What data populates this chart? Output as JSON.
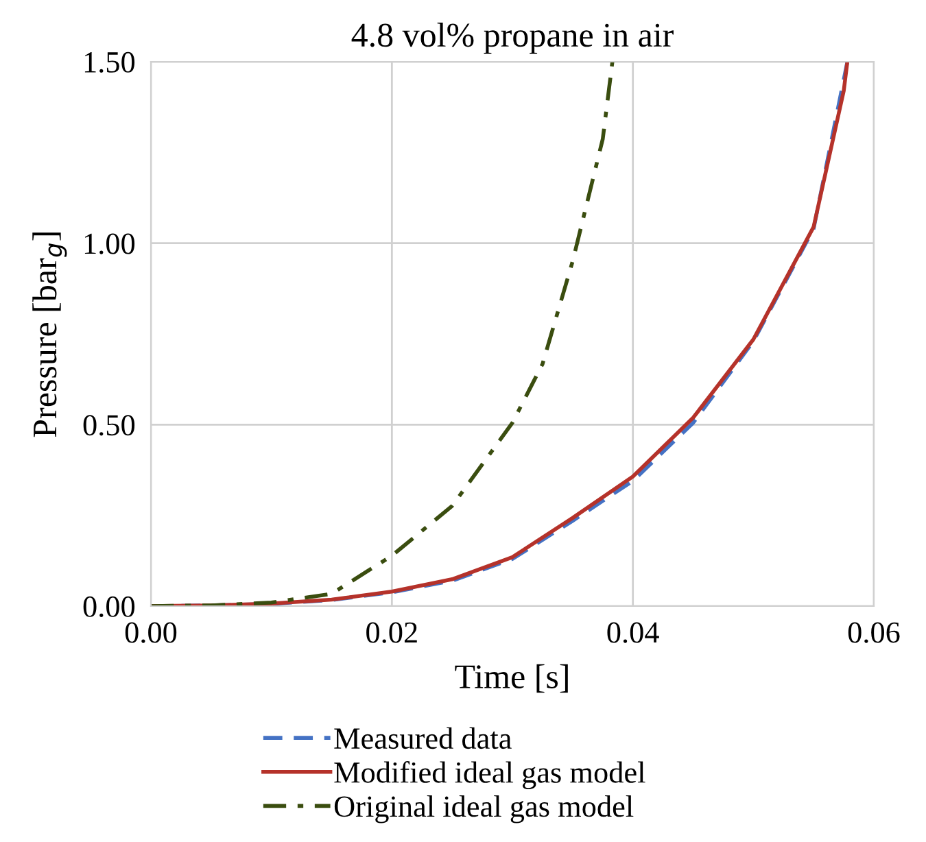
{
  "chart_data": {
    "type": "line",
    "title": "4.8 vol% propane in air",
    "xlabel": "Time [s]",
    "ylabel": "Pressure [bar$_{g}$]",
    "xlim": [
      0,
      0.06
    ],
    "xticks": [
      {
        "value": 0,
        "label": "0.00"
      },
      {
        "value": 0.02,
        "label": "0.02"
      },
      {
        "value": 0.04,
        "label": "0.04"
      },
      {
        "value": 0.06,
        "label": "0.06"
      }
    ],
    "ylim": [
      0,
      1.5
    ],
    "yticks": [
      {
        "value": 0,
        "label": "0.00"
      },
      {
        "value": 0.5,
        "label": "0.50"
      },
      {
        "value": 1.0,
        "label": "1.00"
      },
      {
        "value": 1.5,
        "label": "1.50"
      }
    ],
    "grid": true,
    "legend": "bottom",
    "marker": "none",
    "series": [
      {
        "name": "Measured data",
        "color": "#4472c4",
        "line_style": "dashed",
        "x": [
          0,
          0.005,
          0.01,
          0.015,
          0.02,
          0.025,
          0.03,
          0.035,
          0.04,
          0.045,
          0.05,
          0.055,
          0.0578
        ],
        "values": [
          0,
          0.002,
          0.006,
          0.017,
          0.038,
          0.07,
          0.13,
          0.235,
          0.345,
          0.505,
          0.73,
          1.04,
          1.5
        ]
      },
      {
        "name": "Modified ideal gas model",
        "color": "#b5322a",
        "line_style": "solid",
        "x": [
          0,
          0.005,
          0.01,
          0.015,
          0.02,
          0.025,
          0.03,
          0.035,
          0.04,
          0.045,
          0.05,
          0.055,
          0.0575,
          0.0578
        ],
        "values": [
          0,
          0.002,
          0.007,
          0.018,
          0.04,
          0.074,
          0.135,
          0.243,
          0.357,
          0.519,
          0.735,
          1.045,
          1.42,
          1.5
        ]
      },
      {
        "name": "Original ideal gas model",
        "color": "#3a4d0f",
        "line_style": "dashdot",
        "x": [
          0,
          0.005,
          0.01,
          0.015,
          0.02,
          0.025,
          0.03,
          0.0325,
          0.035,
          0.0375,
          0.0383
        ],
        "values": [
          0,
          0.002,
          0.01,
          0.034,
          0.139,
          0.276,
          0.505,
          0.667,
          0.95,
          1.287,
          1.5
        ]
      }
    ]
  }
}
